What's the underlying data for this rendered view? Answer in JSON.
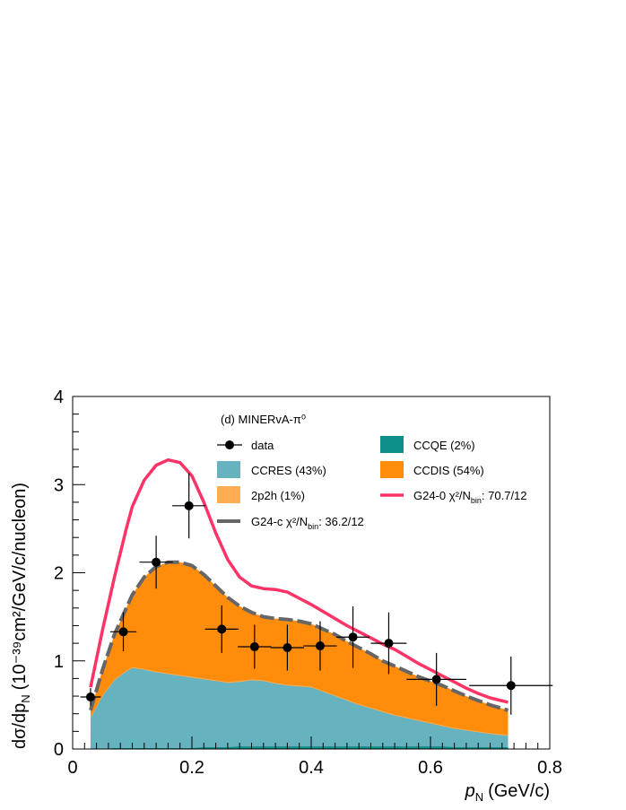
{
  "chart_data": {
    "type": "area",
    "title": "(d) MINERvA-π⁰",
    "xlabel": {
      "symbol": "p",
      "subscript": "N",
      "unit": "(GeV/c)"
    },
    "ylabel": {
      "text": "dσ/dp",
      "subscript": "N",
      "unit": "(10⁻³⁹cm²/GeV/c/nucleon)"
    },
    "xlim": [
      0,
      0.8
    ],
    "ylim": [
      0,
      4
    ],
    "x_ticks": [
      "0",
      "0.2",
      "0.4",
      "0.6",
      "0.8"
    ],
    "y_ticks": [
      "0",
      "1",
      "2",
      "3",
      "4"
    ],
    "colors": {
      "ccqe": "#0e8f8a",
      "ccres": "#66b2bf",
      "twop2h": "#ffad52",
      "ccdis": "#ff8c0a",
      "g24_0": "#ff3366",
      "g24_c": "#666666",
      "data": "#000000"
    },
    "stack_x": [
      0.03,
      0.05,
      0.07,
      0.09,
      0.1,
      0.12,
      0.14,
      0.16,
      0.18,
      0.2,
      0.22,
      0.24,
      0.26,
      0.28,
      0.3,
      0.32,
      0.34,
      0.36,
      0.38,
      0.4,
      0.42,
      0.44,
      0.46,
      0.48,
      0.5,
      0.52,
      0.54,
      0.56,
      0.58,
      0.6,
      0.62,
      0.64,
      0.66,
      0.68,
      0.7,
      0.73
    ],
    "series": [
      {
        "name": "CCQE (2%)",
        "key": "ccqe",
        "cumulative": [
          0.0,
          0.0,
          0.01,
          0.01,
          0.01,
          0.01,
          0.01,
          0.01,
          0.01,
          0.01,
          0.02,
          0.02,
          0.02,
          0.03,
          0.03,
          0.03,
          0.03,
          0.03,
          0.03,
          0.03,
          0.03,
          0.03,
          0.03,
          0.03,
          0.03,
          0.03,
          0.03,
          0.03,
          0.03,
          0.03,
          0.03,
          0.02,
          0.02,
          0.02,
          0.02,
          0.02
        ]
      },
      {
        "name": "CCRES (43%)",
        "key": "ccres",
        "cumulative": [
          0.35,
          0.6,
          0.78,
          0.88,
          0.92,
          0.9,
          0.87,
          0.85,
          0.83,
          0.81,
          0.79,
          0.77,
          0.75,
          0.76,
          0.78,
          0.77,
          0.74,
          0.72,
          0.71,
          0.7,
          0.65,
          0.6,
          0.55,
          0.5,
          0.46,
          0.42,
          0.38,
          0.35,
          0.32,
          0.29,
          0.26,
          0.23,
          0.21,
          0.19,
          0.17,
          0.15
        ]
      },
      {
        "name": "2p2h (1%)",
        "key": "twop2h",
        "cumulative": [
          0.36,
          0.61,
          0.79,
          0.89,
          0.93,
          0.91,
          0.88,
          0.86,
          0.84,
          0.82,
          0.8,
          0.78,
          0.76,
          0.77,
          0.79,
          0.78,
          0.75,
          0.73,
          0.72,
          0.71,
          0.66,
          0.61,
          0.56,
          0.51,
          0.47,
          0.43,
          0.39,
          0.36,
          0.33,
          0.3,
          0.27,
          0.24,
          0.22,
          0.2,
          0.18,
          0.16
        ]
      },
      {
        "name": "CCDIS (54%)",
        "key": "ccdis",
        "cumulative": [
          0.44,
          0.9,
          1.3,
          1.6,
          1.75,
          1.95,
          2.07,
          2.12,
          2.12,
          2.08,
          1.98,
          1.85,
          1.72,
          1.62,
          1.55,
          1.5,
          1.48,
          1.47,
          1.45,
          1.42,
          1.36,
          1.3,
          1.22,
          1.15,
          1.08,
          1.0,
          0.94,
          0.88,
          0.82,
          0.77,
          0.72,
          0.66,
          0.6,
          0.55,
          0.5,
          0.44
        ]
      }
    ],
    "lines": [
      {
        "name": "G24-0",
        "legend": "G24-0 χ²/N",
        "legend_sub": "bin",
        "legend_tail": ": 70.7/12",
        "key": "g24_0",
        "y": [
          0.7,
          1.35,
          1.95,
          2.5,
          2.75,
          3.05,
          3.22,
          3.28,
          3.25,
          3.1,
          2.8,
          2.45,
          2.15,
          1.95,
          1.85,
          1.82,
          1.81,
          1.78,
          1.71,
          1.64,
          1.56,
          1.48,
          1.4,
          1.33,
          1.26,
          1.19,
          1.13,
          1.05,
          0.97,
          0.9,
          0.83,
          0.76,
          0.69,
          0.63,
          0.58,
          0.53
        ]
      },
      {
        "name": "G24-c",
        "legend": "G24-c χ²/N",
        "legend_sub": "bin",
        "legend_tail": ": 36.2/12",
        "key": "g24_c",
        "y": [
          0.44,
          0.9,
          1.3,
          1.6,
          1.75,
          1.95,
          2.07,
          2.12,
          2.12,
          2.08,
          1.98,
          1.85,
          1.72,
          1.62,
          1.55,
          1.5,
          1.48,
          1.47,
          1.45,
          1.42,
          1.36,
          1.3,
          1.22,
          1.15,
          1.08,
          1.0,
          0.94,
          0.88,
          0.82,
          0.77,
          0.72,
          0.66,
          0.6,
          0.55,
          0.5,
          0.44
        ]
      }
    ],
    "data_points": [
      {
        "x": 0.03,
        "y": 0.59,
        "xerr": 0.017,
        "yerr": 0.1
      },
      {
        "x": 0.085,
        "y": 1.33,
        "xerr": 0.022,
        "yerr": 0.22
      },
      {
        "x": 0.14,
        "y": 2.12,
        "xerr": 0.028,
        "yerr": 0.3
      },
      {
        "x": 0.195,
        "y": 2.76,
        "xerr": 0.028,
        "yerr": 0.37
      },
      {
        "x": 0.25,
        "y": 1.36,
        "xerr": 0.028,
        "yerr": 0.27
      },
      {
        "x": 0.305,
        "y": 1.16,
        "xerr": 0.028,
        "yerr": 0.25
      },
      {
        "x": 0.36,
        "y": 1.15,
        "xerr": 0.028,
        "yerr": 0.26
      },
      {
        "x": 0.415,
        "y": 1.17,
        "xerr": 0.028,
        "yerr": 0.28
      },
      {
        "x": 0.47,
        "y": 1.27,
        "xerr": 0.028,
        "yerr": 0.35
      },
      {
        "x": 0.53,
        "y": 1.2,
        "xerr": 0.03,
        "yerr": 0.35
      },
      {
        "x": 0.61,
        "y": 0.79,
        "xerr": 0.05,
        "yerr": 0.3
      },
      {
        "x": 0.735,
        "y": 0.72,
        "xerr": 0.07,
        "yerr": 0.33
      }
    ],
    "legend": {
      "data_label": "data",
      "placement": "top",
      "order": [
        "data",
        "ccqe",
        "ccres",
        "ccdis",
        "twop2h",
        "g24_0",
        "g24_c"
      ]
    }
  }
}
